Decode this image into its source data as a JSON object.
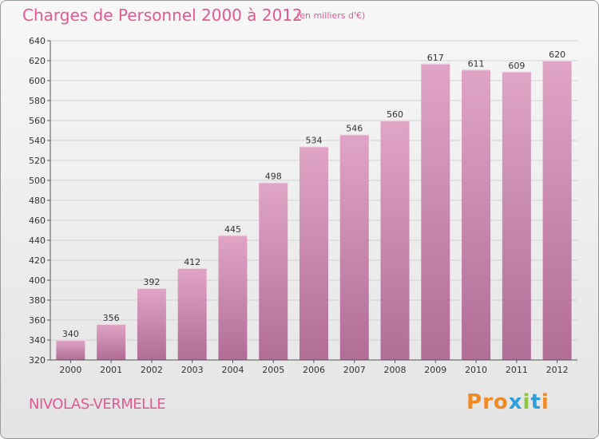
{
  "header": {
    "title": "Charges de Personnel 2000 à 2012",
    "subtitle": "(en milliers d'€)"
  },
  "footer": {
    "commune": "NIVOLAS-VERMELLE",
    "logo_text": "Proxiti"
  },
  "colors": {
    "title": "#e05a92",
    "bar_top": "#e0a4c6",
    "bar_bottom": "#b06d96",
    "logo_letters": [
      "#f08a24",
      "#f08a24",
      "#f08a24",
      "#2e9fd8",
      "#8cc63e",
      "#2e9fd8",
      "#f08a24"
    ]
  },
  "chart_data": {
    "type": "bar",
    "categories": [
      "2000",
      "2001",
      "2002",
      "2003",
      "2004",
      "2005",
      "2006",
      "2007",
      "2008",
      "2009",
      "2010",
      "2011",
      "2012"
    ],
    "values": [
      340,
      356,
      392,
      412,
      445,
      498,
      534,
      546,
      560,
      617,
      611,
      609,
      620
    ],
    "title": "Charges de Personnel 2000 à 2012",
    "subtitle": "(en milliers d'€)",
    "ylim": [
      320,
      640
    ],
    "yticks": [
      320,
      340,
      360,
      380,
      400,
      420,
      440,
      460,
      480,
      500,
      520,
      540,
      560,
      580,
      600,
      620,
      640
    ],
    "grid": true,
    "data_labels": true
  }
}
